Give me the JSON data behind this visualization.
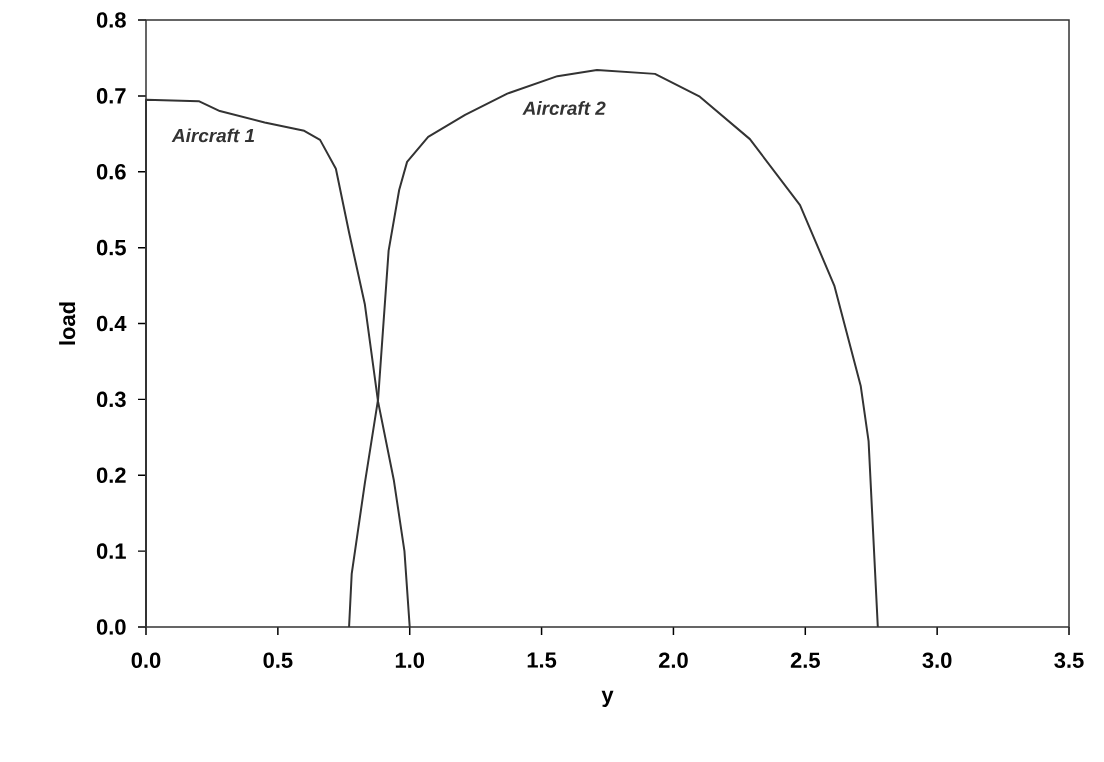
{
  "chart_data": {
    "type": "line",
    "xlabel": "y",
    "ylabel": "load",
    "xlim": [
      0,
      3.5
    ],
    "ylim": [
      0,
      0.8
    ],
    "xticks": [
      {
        "value": 0,
        "label": "0.0"
      },
      0.5,
      {
        "value": 1,
        "label": "1.0"
      },
      1.5,
      {
        "value": 2,
        "label": "2.0"
      },
      2.5,
      {
        "value": 3,
        "label": "3.0"
      },
      3.5
    ],
    "yticks": [
      {
        "value": 0,
        "label": "0.0"
      },
      0.1,
      0.2,
      0.3,
      0.4,
      0.5,
      0.6,
      0.7,
      0.8
    ],
    "grid": false,
    "legend": false,
    "marker": "none",
    "line_style": "solid",
    "series": [
      {
        "name": "Aircraft 1",
        "color": "#333333",
        "x": [
          0,
          0,
          0.2,
          0.28,
          0.45,
          0.6,
          0.66,
          0.72,
          0.77,
          0.83,
          0.88,
          0.94,
          0.98,
          1.0
        ],
        "values": [
          0,
          0.695,
          0.693,
          0.68,
          0.665,
          0.654,
          0.642,
          0.604,
          0.52,
          0.425,
          0.297,
          0.193,
          0.1,
          0
        ]
      },
      {
        "name": "Aircraft 2",
        "color": "#333333",
        "x": [
          0.77,
          0.78,
          0.83,
          0.88,
          0.92,
          0.96,
          0.99,
          1.07,
          1.21,
          1.37,
          1.56,
          1.71,
          1.93,
          2.1,
          2.29,
          2.48,
          2.61,
          2.71,
          2.74,
          2.775
        ],
        "values": [
          0,
          0.07,
          0.19,
          0.3,
          0.496,
          0.576,
          0.613,
          0.646,
          0.675,
          0.703,
          0.726,
          0.734,
          0.729,
          0.699,
          0.643,
          0.556,
          0.45,
          0.318,
          0.245,
          0
        ]
      }
    ]
  }
}
